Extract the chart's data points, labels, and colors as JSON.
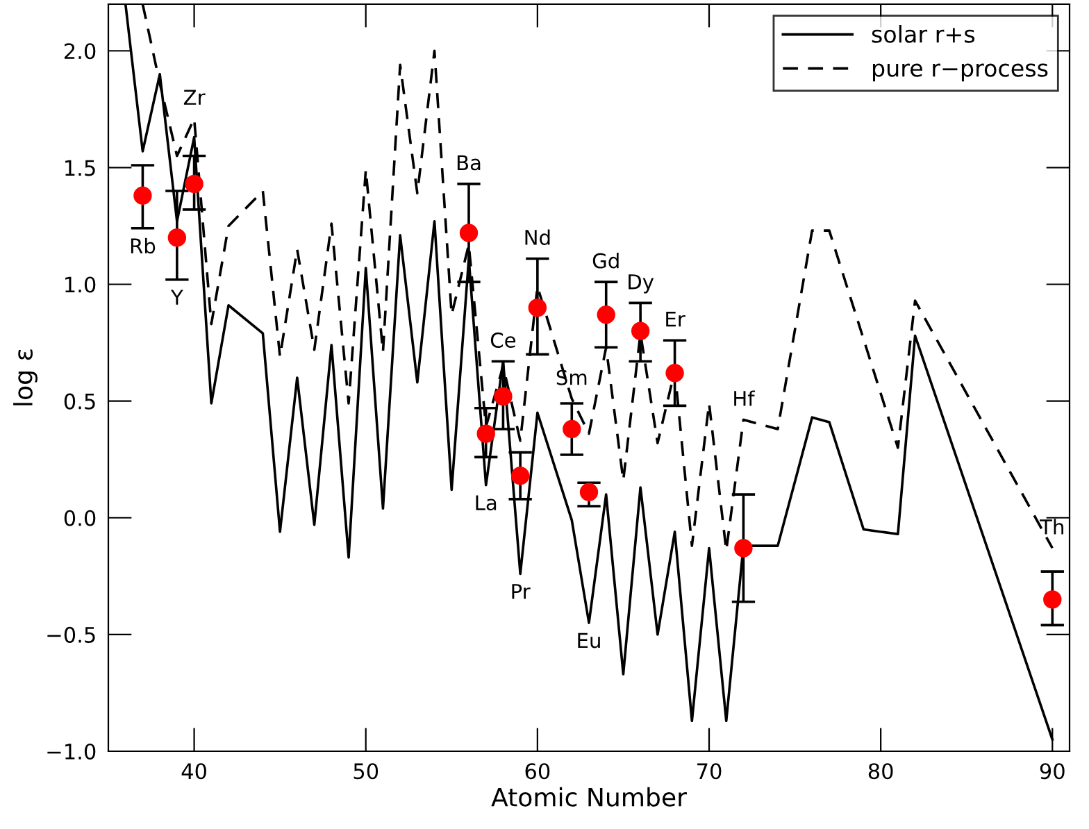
{
  "chart_data": {
    "type": "line",
    "xlabel": "Atomic Number",
    "ylabel": "log ε",
    "xlim": [
      35,
      91
    ],
    "ylim": [
      -1.0,
      2.2
    ],
    "xticks": [
      40,
      50,
      60,
      70,
      80,
      90
    ],
    "yticks": [
      {
        "value": -1.0,
        "label": "−1.0"
      },
      {
        "value": -0.5,
        "label": "−0.5"
      },
      {
        "value": 0.0,
        "label": "0.0"
      },
      {
        "value": 0.5,
        "label": "0.5"
      },
      {
        "value": 1.0,
        "label": "1.0"
      },
      {
        "value": 1.5,
        "label": "1.5"
      },
      {
        "value": 2.0,
        "label": "2.0"
      }
    ],
    "grid": false,
    "legend": "top right",
    "series": [
      {
        "name": "solar r+s",
        "line_style": "solid",
        "color": "#000000",
        "x": [
          36,
          37,
          38,
          39,
          40,
          41,
          42,
          44,
          45,
          46,
          47,
          48,
          49,
          50,
          51,
          52,
          53,
          54,
          55,
          56,
          57,
          58,
          59,
          60,
          62,
          63,
          64,
          65,
          66,
          67,
          68,
          69,
          70,
          71,
          72,
          74,
          76,
          77,
          79,
          81,
          82,
          90
        ],
        "values": [
          2.2,
          1.57,
          1.9,
          1.27,
          1.63,
          0.49,
          0.91,
          0.79,
          -0.06,
          0.6,
          -0.03,
          0.74,
          -0.17,
          1.07,
          0.04,
          1.21,
          0.58,
          1.27,
          0.12,
          1.11,
          0.14,
          0.67,
          -0.24,
          0.45,
          -0.01,
          -0.45,
          0.1,
          -0.67,
          0.13,
          -0.5,
          -0.06,
          -0.87,
          -0.13,
          -0.87,
          -0.12,
          -0.12,
          0.43,
          0.41,
          -0.05,
          -0.07,
          0.78,
          -0.95
        ]
      },
      {
        "name": "pure r−process",
        "line_style": "dashed",
        "color": "#000000",
        "x": [
          37,
          38,
          39,
          40,
          41,
          42,
          44,
          45,
          46,
          47,
          48,
          49,
          50,
          51,
          52,
          53,
          54,
          55,
          56,
          57,
          58,
          59,
          60,
          62,
          63,
          64,
          65,
          66,
          67,
          68,
          69,
          70,
          71,
          72,
          74,
          76,
          77,
          81,
          82,
          90
        ],
        "values": [
          2.2,
          1.86,
          1.55,
          1.71,
          0.83,
          1.25,
          1.4,
          0.69,
          1.15,
          0.72,
          1.26,
          0.49,
          1.49,
          0.71,
          1.94,
          1.39,
          2.0,
          0.87,
          1.17,
          0.39,
          0.65,
          0.33,
          0.99,
          0.51,
          0.36,
          0.73,
          0.16,
          0.79,
          0.32,
          0.63,
          -0.12,
          0.49,
          -0.14,
          0.42,
          0.38,
          1.23,
          1.23,
          0.3,
          0.93,
          -0.13
        ]
      },
      {
        "type": "scatter",
        "marker": "circle",
        "color": "#ff0000",
        "x": [
          37,
          39,
          40,
          56,
          57,
          58,
          59,
          60,
          62,
          63,
          64,
          66,
          68,
          72,
          90
        ],
        "values": [
          1.38,
          1.2,
          1.43,
          1.22,
          0.36,
          0.52,
          0.18,
          0.9,
          0.38,
          0.11,
          0.87,
          0.8,
          0.62,
          -0.13,
          -0.35
        ],
        "errors": [
          [
            1.24,
            1.51
          ],
          [
            1.02,
            1.4
          ],
          [
            1.32,
            1.55
          ],
          [
            1.01,
            1.43
          ],
          [
            0.26,
            0.47
          ],
          [
            0.38,
            0.67
          ],
          [
            0.08,
            0.28
          ],
          [
            0.7,
            1.11
          ],
          [
            0.27,
            0.49
          ],
          [
            0.05,
            0.15
          ],
          [
            0.73,
            1.01
          ],
          [
            0.67,
            0.92
          ],
          [
            0.48,
            0.76
          ],
          [
            -0.36,
            0.1
          ],
          [
            -0.46,
            -0.23
          ]
        ]
      }
    ],
    "annotations": [
      {
        "text": "Rb",
        "x": 37,
        "y": 1.24
      },
      {
        "text": "Y",
        "x": 39,
        "y": 1.02
      },
      {
        "text": "Zr",
        "x": 40,
        "y": 1.71
      },
      {
        "text": "Ba",
        "x": 56,
        "y": 1.43
      },
      {
        "text": "La",
        "x": 57,
        "y": 0.14
      },
      {
        "text": "Ce",
        "x": 58,
        "y": 0.67
      },
      {
        "text": "Pr",
        "x": 59,
        "y": -0.24
      },
      {
        "text": "Nd",
        "x": 60,
        "y": 1.11
      },
      {
        "text": "Sm",
        "x": 62,
        "y": 0.51
      },
      {
        "text": "Eu",
        "x": 63,
        "y": -0.45
      },
      {
        "text": "Gd",
        "x": 64,
        "y": 1.01
      },
      {
        "text": "Dy",
        "x": 66,
        "y": 0.92
      },
      {
        "text": "Er",
        "x": 68,
        "y": 0.76
      },
      {
        "text": "Hf",
        "x": 72,
        "y": 0.42
      },
      {
        "text": "Th",
        "x": 90,
        "y": -0.13
      }
    ]
  }
}
